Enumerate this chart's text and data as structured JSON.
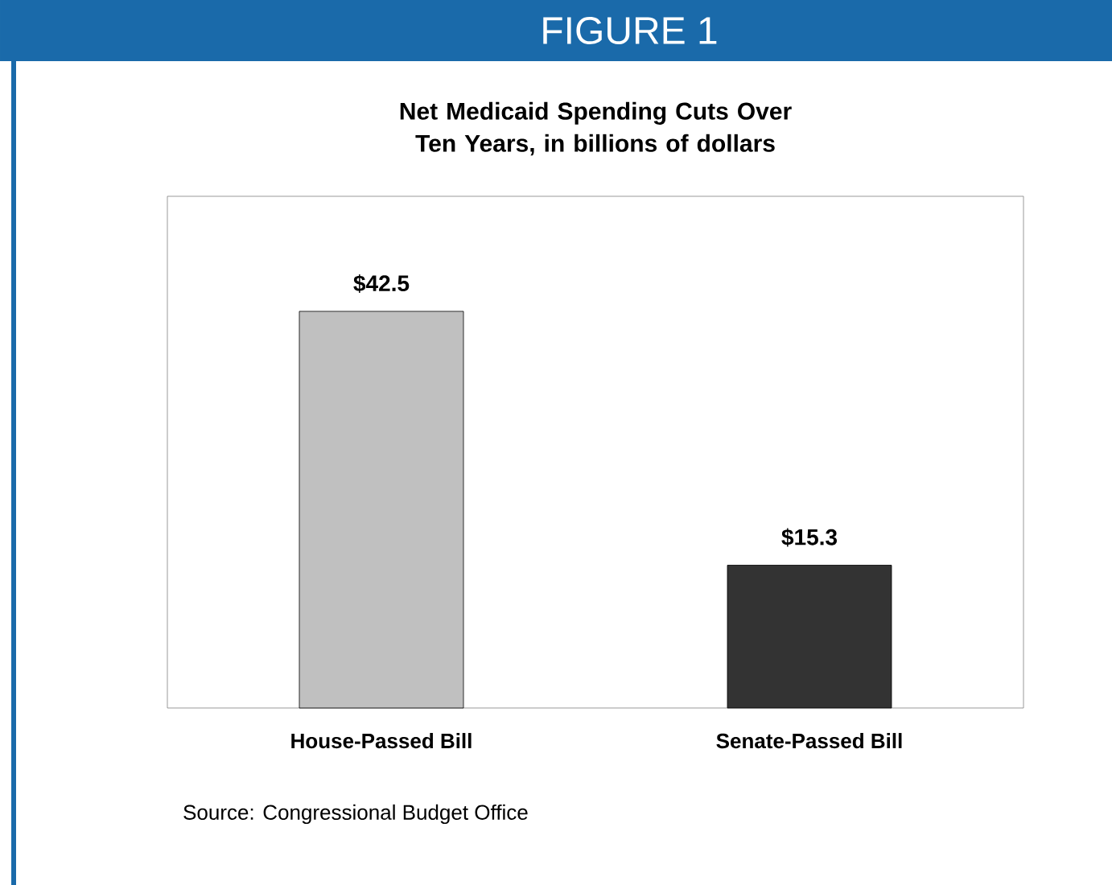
{
  "chart_data": {
    "type": "bar",
    "title": "FIGURE 1",
    "subtitle": "Net Medicaid Spending Cuts Over Ten Years, in billions of dollars",
    "categories": [
      "House-Passed Bill",
      "Senate-Passed Bill"
    ],
    "values": [
      42.5,
      15.3
    ],
    "colors": [
      "#c0c0c0",
      "#333333"
    ],
    "value_labels": [
      "$42.5",
      "$15.3"
    ],
    "annotations": [
      "Source:  Congressional Budget Office"
    ]
  }
}
